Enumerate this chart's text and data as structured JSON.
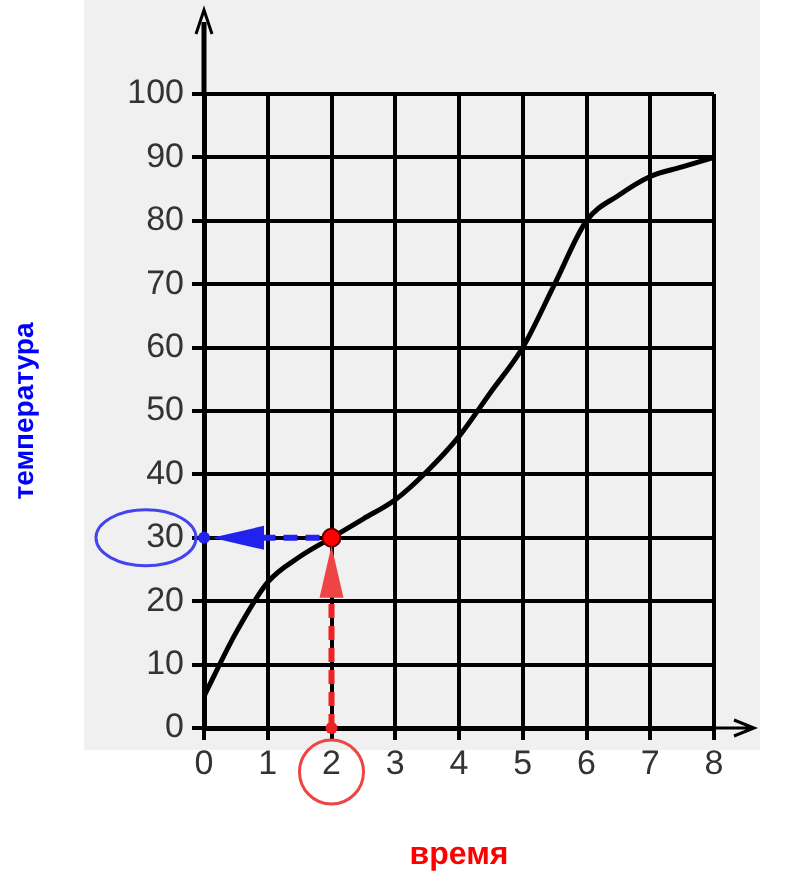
{
  "chart_data": {
    "type": "line",
    "xlabel": "время",
    "ylabel": "температура",
    "xlim": [
      0,
      8
    ],
    "ylim": [
      0,
      100
    ],
    "xticks": [
      0,
      1,
      2,
      3,
      4,
      5,
      6,
      7,
      8
    ],
    "yticks": [
      0,
      10,
      20,
      30,
      40,
      50,
      60,
      70,
      80,
      90,
      100
    ],
    "grid": true,
    "legend": false,
    "line_style": "solid",
    "series": [
      {
        "marker": "none",
        "color": "#000000",
        "x": [
          0,
          0.5,
          1,
          1.5,
          2,
          2.5,
          3,
          3.5,
          4,
          4.5,
          5,
          5.5,
          6,
          6.5,
          7,
          7.5,
          8
        ],
        "values": [
          5,
          15,
          23,
          27,
          30,
          33,
          36,
          40.5,
          46,
          53,
          60,
          70,
          80,
          84,
          87,
          88.5,
          90
        ]
      },
      {
        "type": "scatter",
        "marker": "circle",
        "color": "#ff0000",
        "x": [
          2
        ],
        "values": [
          30
        ]
      }
    ]
  }
}
